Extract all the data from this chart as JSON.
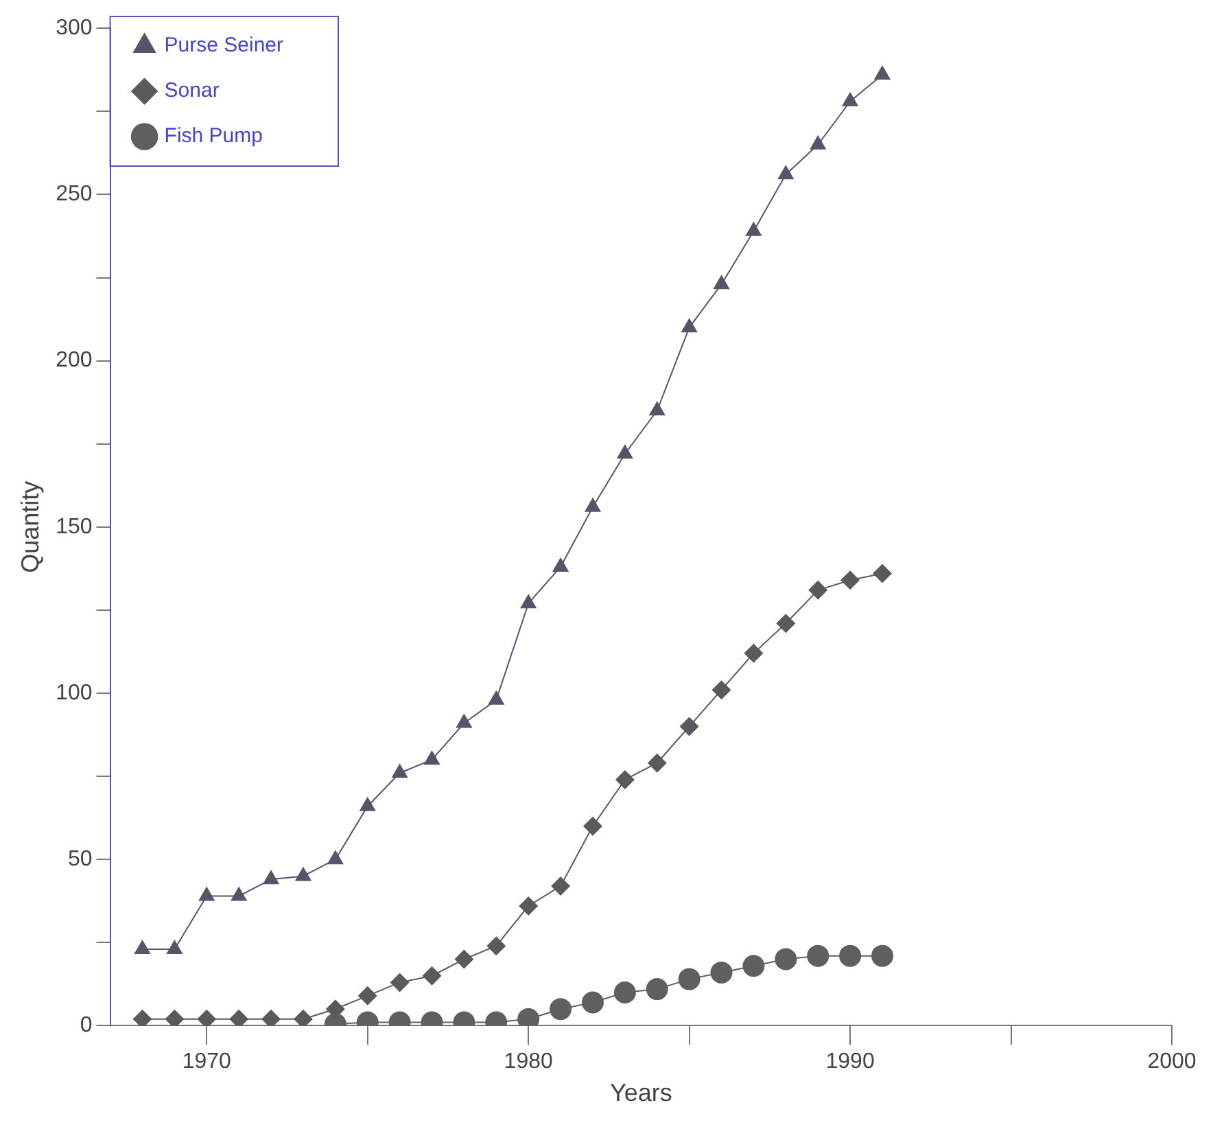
{
  "chart_data": {
    "type": "line",
    "xlabel": "Years",
    "ylabel": "Quantity",
    "xlim": [
      1967,
      2000
    ],
    "xticks": [
      {
        "value": 1970,
        "label": "1970"
      },
      {
        "value": 1975,
        "label": null
      },
      {
        "value": 1980,
        "label": "1980"
      },
      {
        "value": 1985,
        "label": null
      },
      {
        "value": 1990,
        "label": "1990"
      },
      {
        "value": 1995,
        "label": null
      },
      {
        "value": 2000,
        "label": "2000"
      }
    ],
    "ylim": [
      0,
      300
    ],
    "yticks": [
      0,
      {
        "value": 25,
        "label": null
      },
      50,
      {
        "value": 75,
        "label": null
      },
      100,
      {
        "value": 125,
        "label": null
      },
      150,
      {
        "value": 175,
        "label": null
      },
      200,
      {
        "value": 225,
        "label": null
      },
      250,
      {
        "value": 275,
        "label": null
      },
      300
    ],
    "grid": false,
    "legend": "top left",
    "line_style": "solid",
    "x": [
      1968,
      1969,
      1970,
      1971,
      1972,
      1973,
      1974,
      1975,
      1976,
      1977,
      1978,
      1979,
      1980,
      1981,
      1982,
      1983,
      1984,
      1985,
      1986,
      1987,
      1988,
      1989,
      1990,
      1991
    ],
    "series": [
      {
        "name": "Purse Seiner",
        "color": "#55556a",
        "marker": "triangle",
        "values": [
          23,
          23,
          39,
          39,
          44,
          45,
          50,
          66,
          76,
          80,
          91,
          98,
          127,
          138,
          156,
          172,
          185,
          210,
          223,
          239,
          256,
          265,
          278,
          286
        ]
      },
      {
        "name": "Sonar",
        "color": "#5a5a5e",
        "marker": "diamond",
        "values": [
          2,
          2,
          2,
          2,
          2,
          2,
          5,
          9,
          13,
          15,
          20,
          24,
          36,
          42,
          60,
          74,
          79,
          90,
          101,
          112,
          121,
          131,
          134,
          136
        ]
      },
      {
        "name": "Fish Pump",
        "color": "#5f5f5f",
        "marker": "circle",
        "values": [
          null,
          null,
          null,
          null,
          null,
          null,
          0.5,
          1,
          1,
          1,
          1,
          1,
          2,
          5,
          7,
          10,
          11,
          14,
          16,
          18,
          20,
          21,
          21,
          21
        ]
      }
    ]
  }
}
